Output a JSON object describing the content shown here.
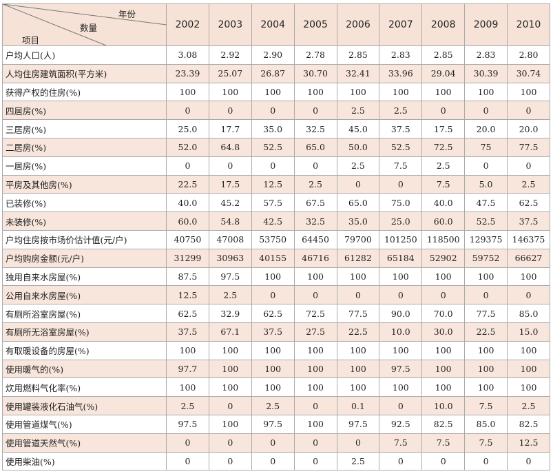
{
  "table": {
    "header": {
      "year_label": "年份",
      "quantity_label": "数量",
      "item_label": "项目",
      "years": [
        "2002",
        "2003",
        "2004",
        "2005",
        "2006",
        "2007",
        "2008",
        "2009",
        "2010"
      ]
    },
    "rows": [
      {
        "label": "户均人口(人)",
        "values": [
          "3.08",
          "2.92",
          "2.90",
          "2.78",
          "2.85",
          "2.83",
          "2.85",
          "2.83",
          "2.80"
        ]
      },
      {
        "label": "人均住房建筑面积(平方米)",
        "values": [
          "23.39",
          "25.07",
          "26.87",
          "30.70",
          "32.41",
          "33.96",
          "29.04",
          "30.39",
          "30.74"
        ]
      },
      {
        "label": "获得产权的住房(%)",
        "values": [
          "100",
          "100",
          "100",
          "100",
          "100",
          "100",
          "100",
          "100",
          "100"
        ]
      },
      {
        "label": "四居房(%)",
        "values": [
          "0",
          "0",
          "0",
          "0",
          "2.5",
          "2.5",
          "0",
          "0",
          "0"
        ]
      },
      {
        "label": "三居房(%)",
        "values": [
          "25.0",
          "17.7",
          "35.0",
          "32.5",
          "45.0",
          "37.5",
          "17.5",
          "20.0",
          "20.0"
        ]
      },
      {
        "label": "二居房(%)",
        "values": [
          "52.0",
          "64.8",
          "52.5",
          "65.0",
          "50.0",
          "52.5",
          "72.5",
          "75",
          "77.5"
        ]
      },
      {
        "label": "一居房(%)",
        "values": [
          "0",
          "0",
          "0",
          "0",
          "2.5",
          "7.5",
          "2.5",
          "0",
          "0"
        ]
      },
      {
        "label": "平房及其他房(%)",
        "values": [
          "22.5",
          "17.5",
          "12.5",
          "2.5",
          "0",
          "0",
          "7.5",
          "5.0",
          "2.5"
        ]
      },
      {
        "label": "已装修(%)",
        "values": [
          "40.0",
          "45.2",
          "57.5",
          "67.5",
          "65.0",
          "75.0",
          "40.0",
          "47.5",
          "62.5"
        ]
      },
      {
        "label": "未装修(%)",
        "values": [
          "60.0",
          "54.8",
          "42.5",
          "32.5",
          "35.0",
          "25.0",
          "60.0",
          "52.5",
          "37.5"
        ]
      },
      {
        "label": "户均住房按市场价估计值(元/户)",
        "values": [
          "40750",
          "47008",
          "53750",
          "64450",
          "79700",
          "101250",
          "118500",
          "129375",
          "146375"
        ]
      },
      {
        "label": "户均购房金额(元/户)",
        "values": [
          "31299",
          "30963",
          "40155",
          "46716",
          "61282",
          "65184",
          "52902",
          "59752",
          "66627"
        ]
      },
      {
        "label": "独用自来水房屋(%)",
        "values": [
          "87.5",
          "97.5",
          "100",
          "100",
          "100",
          "100",
          "100",
          "100",
          "100"
        ]
      },
      {
        "label": "公用自来水房屋(%)",
        "values": [
          "12.5",
          "2.5",
          "0",
          "0",
          "0",
          "0",
          "0",
          "0",
          "0"
        ]
      },
      {
        "label": "有厕所浴室房屋(%)",
        "values": [
          "62.5",
          "32.9",
          "62.5",
          "72.5",
          "77.5",
          "90.0",
          "70.0",
          "77.5",
          "85.0"
        ]
      },
      {
        "label": "有厕所无浴室房屋(%)",
        "values": [
          "37.5",
          "67.1",
          "37.5",
          "27.5",
          "22.5",
          "10.0",
          "30.0",
          "22.5",
          "15.0"
        ]
      },
      {
        "label": "有取暖设备的房屋(%)",
        "values": [
          "100",
          "100",
          "100",
          "100",
          "100",
          "100",
          "100",
          "100",
          "100"
        ]
      },
      {
        "label": "使用暖气的(%)",
        "values": [
          "97.7",
          "100",
          "100",
          "100",
          "100",
          "97.5",
          "100",
          "100",
          "100"
        ]
      },
      {
        "label": "炊用燃料气化率(%)",
        "values": [
          "100",
          "100",
          "100",
          "100",
          "100",
          "100",
          "100",
          "100",
          "100"
        ]
      },
      {
        "label": "使用罐装液化石油气(%)",
        "values": [
          "2.5",
          "0",
          "2.5",
          "0",
          "0.1",
          "0",
          "10.0",
          "7.5",
          "2.5"
        ]
      },
      {
        "label": "使用管道煤气(%)",
        "values": [
          "97.5",
          "100",
          "97.5",
          "100",
          "97.5",
          "92.5",
          "82.5",
          "85.0",
          "82.5"
        ]
      },
      {
        "label": "使用管道天然气(%)",
        "values": [
          "0",
          "0",
          "0",
          "0",
          "0",
          "7.5",
          "7.5",
          "7.5",
          "12.5"
        ]
      },
      {
        "label": "使用柴油(%)",
        "values": [
          "0",
          "0",
          "0",
          "0",
          "2.5",
          "0",
          "0",
          "0",
          "0"
        ]
      }
    ]
  }
}
